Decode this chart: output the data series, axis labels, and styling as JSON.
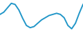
{
  "x": [
    0,
    1,
    2,
    3,
    4,
    5,
    6,
    7,
    8,
    9,
    10,
    11,
    12,
    13,
    14,
    15,
    16,
    17,
    18,
    19,
    20,
    21,
    22
  ],
  "y": [
    42,
    46,
    54,
    62,
    60,
    50,
    35,
    22,
    18,
    20,
    26,
    32,
    36,
    40,
    42,
    44,
    42,
    36,
    22,
    16,
    26,
    44,
    60
  ],
  "line_color": "#2196c8",
  "linewidth": 1.4,
  "bg_color": "#ffffff",
  "ylim_min": 12,
  "ylim_max": 68
}
